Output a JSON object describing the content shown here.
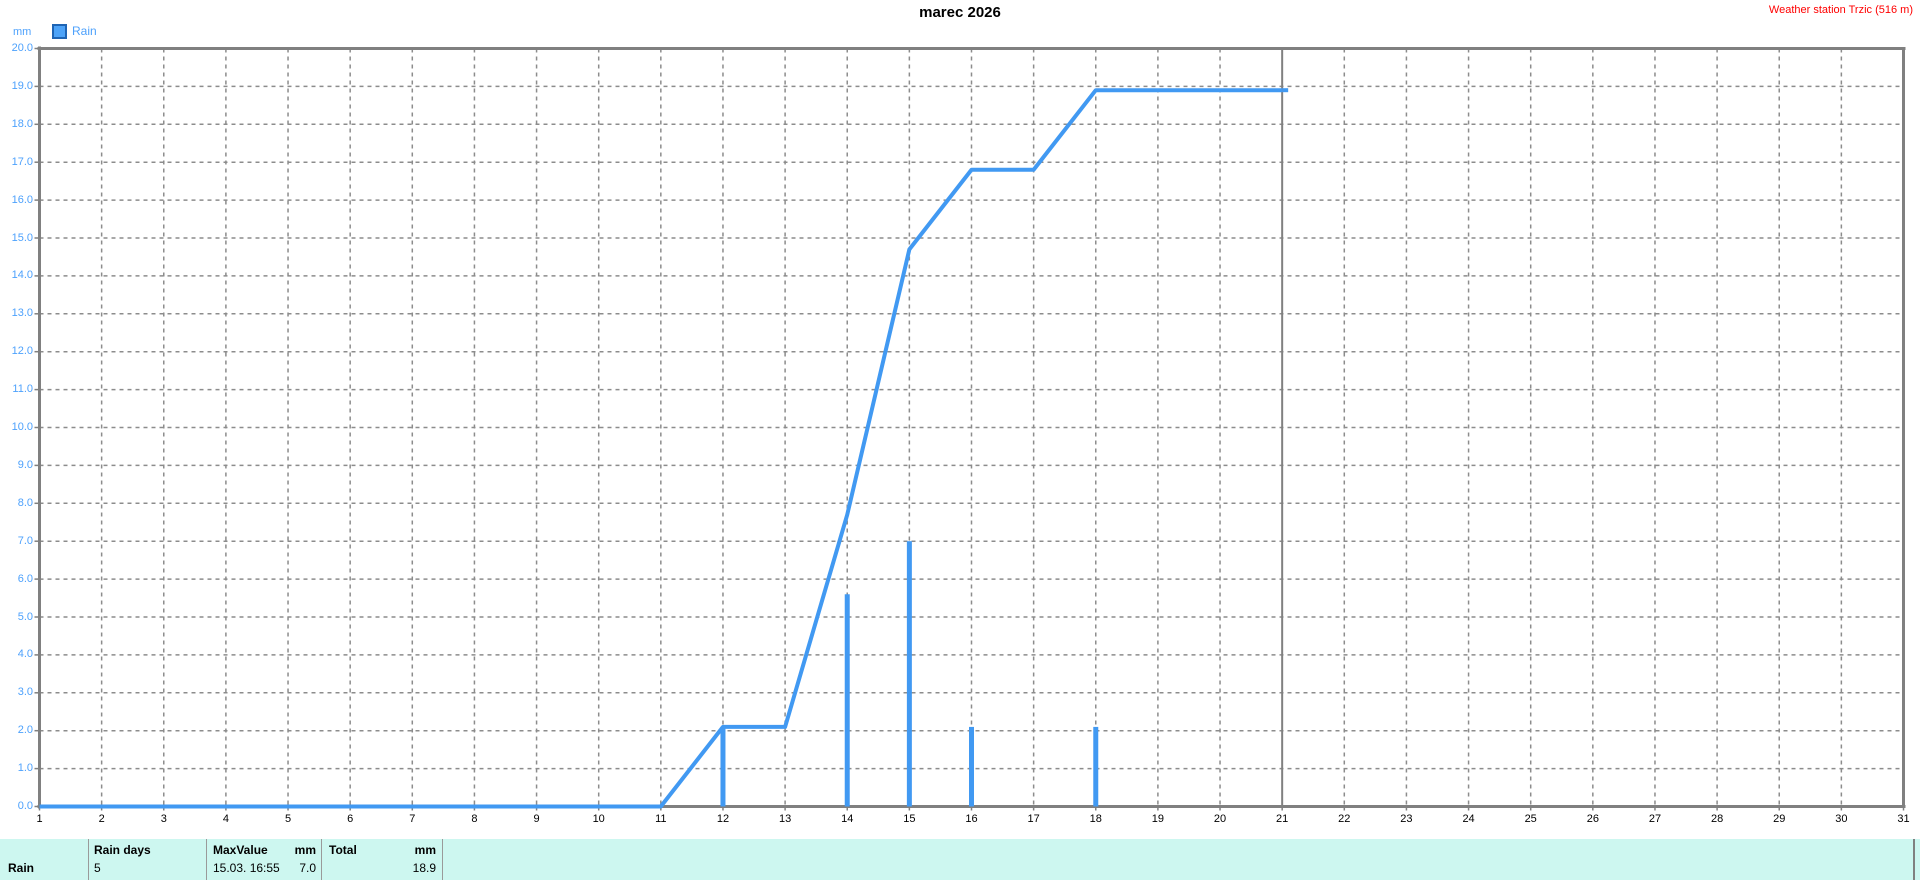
{
  "title": "marec 2026",
  "station_label": "Weather station Trzic (516 m)",
  "unit_label": "mm",
  "legend": {
    "label": "Rain"
  },
  "colors": {
    "line_blue": "#4199f2",
    "label_blue": "#4da1fc",
    "station_red": "#ff0000",
    "axis_gray": "#808080",
    "grid_gray": "#8c8c8c",
    "table_bg": "#cdf7f0",
    "table_separator": "#9a9a9a"
  },
  "chart_data": {
    "type": "line",
    "title": "marec 2026",
    "xlabel": "",
    "ylabel": "mm",
    "xlim": [
      1,
      31
    ],
    "ylim": [
      0,
      20
    ],
    "grid": true,
    "legend_position": "top-left",
    "x_tick_labels": [
      "1",
      "2",
      "3",
      "4",
      "5",
      "6",
      "7",
      "8",
      "9",
      "10",
      "11",
      "12",
      "13",
      "14",
      "15",
      "16",
      "17",
      "18",
      "19",
      "20",
      "21",
      "22",
      "23",
      "24",
      "25",
      "26",
      "27",
      "28",
      "29",
      "30",
      "31"
    ],
    "y_tick_labels": [
      "0.0",
      "1.0",
      "2.0",
      "3.0",
      "4.0",
      "5.0",
      "6.0",
      "7.0",
      "8.0",
      "9.0",
      "10.0",
      "11.0",
      "12.0",
      "13.0",
      "14.0",
      "15.0",
      "16.0",
      "17.0",
      "18.0",
      "19.0",
      "20.0"
    ],
    "current_day_marker": 21,
    "series": [
      {
        "name": "Rain cumulative (mm)",
        "type": "line",
        "points": [
          [
            1,
            0
          ],
          [
            2,
            0
          ],
          [
            3,
            0
          ],
          [
            4,
            0
          ],
          [
            5,
            0
          ],
          [
            6,
            0
          ],
          [
            7,
            0
          ],
          [
            8,
            0
          ],
          [
            9,
            0
          ],
          [
            10,
            0
          ],
          [
            11,
            0
          ],
          [
            12,
            2.1
          ],
          [
            13,
            2.1
          ],
          [
            14,
            7.7
          ],
          [
            15,
            14.7
          ],
          [
            16,
            16.8
          ],
          [
            17,
            16.8
          ],
          [
            18,
            18.9
          ],
          [
            19,
            18.9
          ],
          [
            20,
            18.9
          ],
          [
            21,
            18.9
          ]
        ]
      },
      {
        "name": "Rain daily (mm)",
        "type": "bar",
        "points": [
          [
            12,
            2.1
          ],
          [
            14,
            5.6
          ],
          [
            15,
            7.0
          ],
          [
            16,
            2.1
          ],
          [
            18,
            2.1
          ]
        ]
      }
    ]
  },
  "summary_table": {
    "row_label": "Rain",
    "rain_days_header": "Rain days",
    "rain_days_value": "5",
    "max_header": "MaxValue",
    "max_unit": "mm",
    "max_time": "15.03.  16:55",
    "max_value": "7.0",
    "total_header": "Total",
    "total_unit": "mm",
    "total_value": "18.9"
  }
}
